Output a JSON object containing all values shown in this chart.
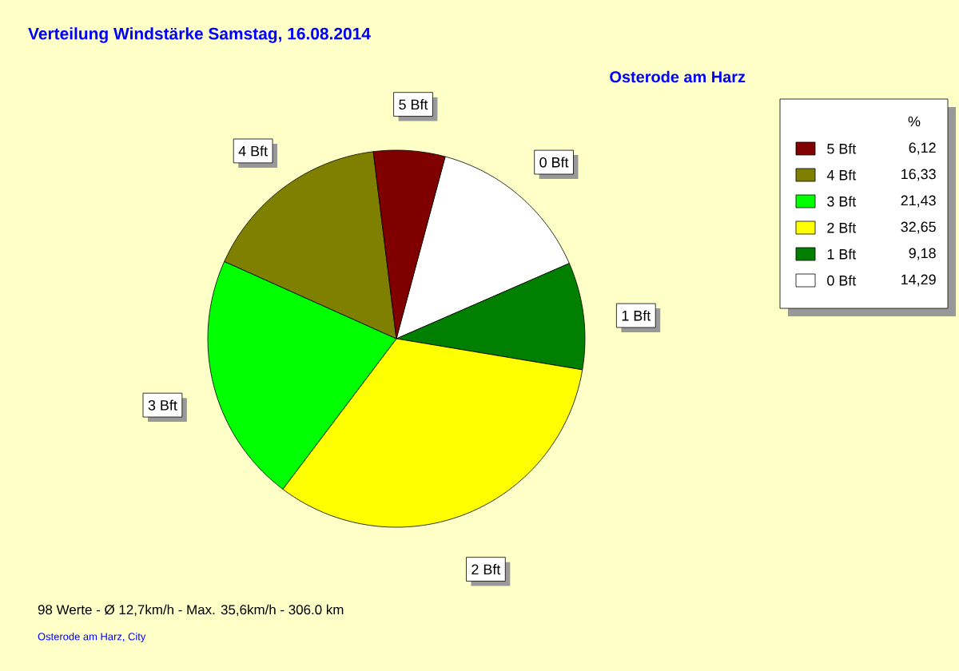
{
  "chart_data": {
    "type": "pie",
    "title": "Verteilung Windstärke  Samstag, 16.08.2014",
    "subtitle": "Osterode am Harz",
    "categories": [
      "0 Bft",
      "1 Bft",
      "2 Bft",
      "3 Bft",
      "4 Bft",
      "5 Bft"
    ],
    "values": [
      14.29,
      9.18,
      32.65,
      21.43,
      16.33,
      6.12
    ],
    "value_labels": [
      "14,29",
      "9,18",
      "32,65",
      "21,43",
      "16,33",
      "6,12"
    ],
    "colors": [
      "#ffffff",
      "#007f00",
      "#ffff00",
      "#00ff00",
      "#808000",
      "#800000"
    ],
    "legend_title": "%",
    "legend": "top right",
    "annotations": [
      "98 Werte   -   Ø 12,7km/h  -  Max. 35,6km/h   -   306.0 km",
      "Osterode am Harz, City"
    ]
  }
}
